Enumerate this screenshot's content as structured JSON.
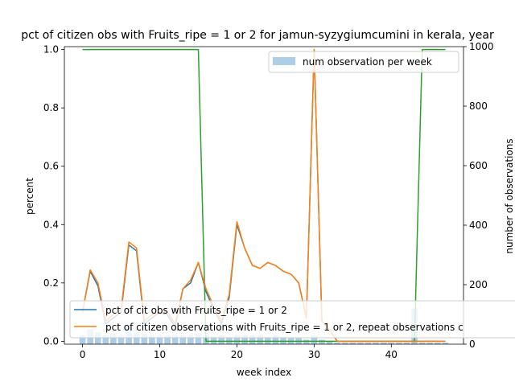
{
  "chart_data": {
    "type": "line",
    "title": "pct of citizen obs with Fruits_ripe = 1 or 2 for jamun-syzygiumcumini in kerala, year",
    "xlabel": "week index",
    "ylabel": "percent",
    "y2label": "number of observations",
    "xlim": [
      -2.35,
      49.35
    ],
    "ylim": [
      -0.01,
      1.01
    ],
    "y2lim": [
      0,
      1000
    ],
    "xticks": [
      0,
      10,
      20,
      30,
      40
    ],
    "yticks": [
      0.0,
      0.2,
      0.4,
      0.6,
      0.8,
      1.0
    ],
    "y2ticks": [
      0,
      200,
      400,
      600,
      800,
      1000
    ],
    "x": [
      0,
      1,
      2,
      3,
      4,
      5,
      6,
      7,
      8,
      9,
      10,
      11,
      12,
      13,
      14,
      15,
      16,
      17,
      18,
      19,
      20,
      21,
      22,
      23,
      24,
      25,
      26,
      27,
      28,
      29,
      30,
      31,
      32,
      33,
      34,
      35,
      36,
      37,
      38,
      39,
      40,
      41,
      42,
      43,
      44,
      45,
      46,
      47
    ],
    "series": [
      {
        "name": "pct of cit obs with Fruits_ripe = 1 or 2",
        "color": "#1f77b4",
        "values": [
          0.1,
          0.24,
          0.19,
          0.06,
          0.08,
          0.1,
          0.33,
          0.31,
          0.06,
          0.08,
          0.1,
          0.09,
          0.05,
          0.18,
          0.2,
          0.27,
          0.17,
          0.11,
          0.06,
          0.15,
          0.4,
          0.32,
          0.26,
          0.25,
          0.27,
          0.26,
          0.24,
          0.23,
          0.2,
          0.08,
          1.0,
          0.07,
          0.04,
          0.0,
          0.0,
          0.0,
          0.0,
          0.0,
          0.0,
          0.0,
          0.0,
          0.0,
          0.0,
          0.0,
          0.0,
          0.0,
          0.0,
          0.0
        ]
      },
      {
        "name": "pct of citizen observations with Fruits_ripe = 1 or 2, repeat observations c",
        "color": "#ff7f0e",
        "values": [
          0.1,
          0.245,
          0.2,
          0.07,
          0.09,
          0.11,
          0.34,
          0.32,
          0.07,
          0.09,
          0.1,
          0.1,
          0.06,
          0.18,
          0.21,
          0.27,
          0.18,
          0.12,
          0.07,
          0.16,
          0.41,
          0.32,
          0.26,
          0.25,
          0.27,
          0.26,
          0.24,
          0.23,
          0.2,
          0.08,
          1.0,
          0.07,
          0.04,
          0.0,
          0.0,
          0.0,
          0.0,
          0.0,
          0.0,
          0.0,
          0.0,
          0.0,
          0.0,
          0.0,
          0.0,
          0.0,
          0.0,
          0.0
        ]
      },
      {
        "color": "#2ca02c",
        "values": [
          1,
          1,
          1,
          1,
          1,
          1,
          1,
          1,
          1,
          1,
          1,
          1,
          1,
          1,
          1,
          1,
          0,
          0,
          0,
          0,
          0,
          0,
          0,
          0,
          0,
          0,
          0,
          0,
          0,
          0,
          0,
          0,
          0,
          0,
          0,
          0,
          0,
          0,
          0,
          0,
          0,
          0,
          0,
          0,
          1,
          1,
          1,
          1
        ]
      }
    ],
    "bars": {
      "name": "num observation per week",
      "color": "#aecde6",
      "axis": "right",
      "values": [
        30,
        50,
        40,
        30,
        35,
        30,
        55,
        40,
        35,
        30,
        30,
        30,
        30,
        30,
        30,
        35,
        30,
        25,
        30,
        25,
        30,
        30,
        30,
        30,
        25,
        30,
        25,
        20,
        20,
        15,
        30,
        15,
        10,
        5,
        5,
        5,
        5,
        5,
        5,
        5,
        5,
        5,
        5,
        120,
        5,
        5,
        5,
        5
      ]
    },
    "legend": {
      "upper": "top-right",
      "lower": "bottom-left"
    }
  }
}
